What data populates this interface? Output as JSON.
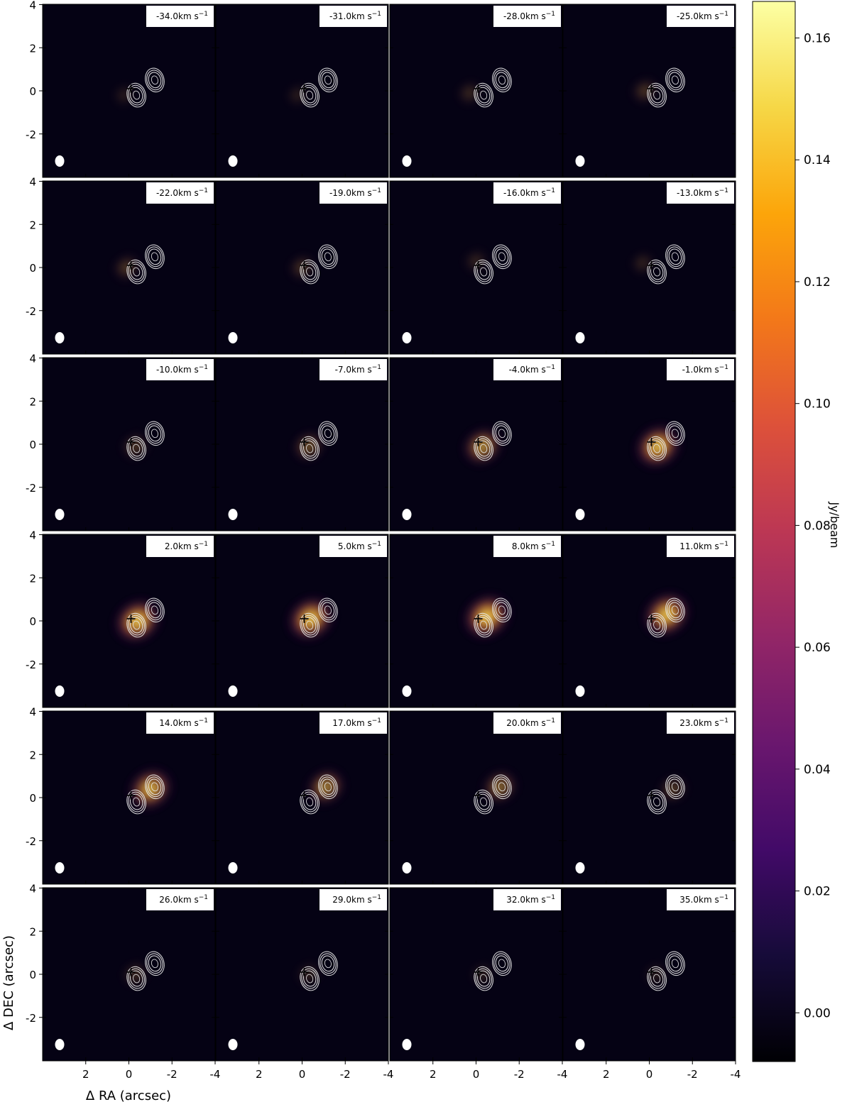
{
  "chart_data": {
    "type": "heatmap",
    "title": "",
    "xlabel": "Δ RA (arcsec)",
    "ylabel": "Δ DEC (arcsec)",
    "xlim": [
      4,
      -4
    ],
    "ylim": [
      -4,
      4
    ],
    "x_ticks": [
      "2",
      "0",
      "-2",
      "-4"
    ],
    "y_ticks": [
      "4",
      "2",
      "0",
      "-2"
    ],
    "velocity_unit": "km s",
    "velocity_unit_exp": "−1",
    "velocities": [
      -34.0,
      -31.0,
      -28.0,
      -25.0,
      -22.0,
      -19.0,
      -16.0,
      -13.0,
      -10.0,
      -7.0,
      -4.0,
      -1.0,
      2.0,
      5.0,
      8.0,
      11.0,
      14.0,
      17.0,
      20.0,
      23.0,
      26.0,
      29.0,
      32.0,
      35.0
    ],
    "channel_labels": [
      "-34.0km s",
      "-31.0km s",
      "-28.0km s",
      "-25.0km s",
      "-22.0km s",
      "-19.0km s",
      "-16.0km s",
      "-13.0km s",
      "-10.0km s",
      "-7.0km s",
      "-4.0km s",
      "-1.0km s",
      "2.0km s",
      "5.0km s",
      "8.0km s",
      "11.0km s",
      "14.0km s",
      "17.0km s",
      "20.0km s",
      "23.0km s",
      "26.0km s",
      "29.0km s",
      "32.0km s",
      "35.0km s"
    ],
    "peak_flux_jy_per_beam": [
      0.004,
      0.006,
      0.018,
      0.03,
      0.034,
      0.028,
      0.014,
      0.012,
      0.035,
      0.06,
      0.11,
      0.15,
      0.155,
      0.155,
      0.16,
      0.155,
      0.14,
      0.1,
      0.08,
      0.04,
      0.025,
      0.015,
      0.01,
      0.008
    ],
    "emission_peak_arcsec": [
      [
        0.2,
        -0.2
      ],
      [
        0.2,
        -0.2
      ],
      [
        0.3,
        -0.1
      ],
      [
        0.2,
        0.0
      ],
      [
        0.1,
        0.0
      ],
      [
        0.0,
        0.0
      ],
      [
        0.0,
        0.3
      ],
      [
        0.3,
        0.2
      ],
      [
        -0.3,
        -0.1
      ],
      [
        -0.3,
        -0.1
      ],
      [
        -0.3,
        -0.1
      ],
      [
        -0.4,
        -0.1
      ],
      [
        -0.4,
        0.0
      ],
      [
        -0.4,
        0.1
      ],
      [
        -0.5,
        0.2
      ],
      [
        -0.8,
        0.3
      ],
      [
        -1.0,
        0.4
      ],
      [
        -1.1,
        0.5
      ],
      [
        -1.1,
        0.5
      ],
      [
        -1.1,
        0.4
      ],
      [
        -0.3,
        0.0
      ],
      [
        -0.3,
        0.0
      ],
      [
        -0.3,
        0.0
      ],
      [
        -0.3,
        0.0
      ]
    ],
    "continuum_sources_arcsec": [
      [
        -0.35,
        -0.2
      ],
      [
        -1.2,
        0.5
      ]
    ],
    "cross_marker_arcsec": [
      -0.1,
      0.1
    ],
    "colorbar": {
      "label": "Jy/beam",
      "colormap": "inferno",
      "range": [
        -0.008,
        0.166
      ],
      "ticks": [
        "0.00",
        "0.02",
        "0.04",
        "0.06",
        "0.08",
        "0.10",
        "0.12",
        "0.14",
        "0.16"
      ]
    },
    "grid": false,
    "legend": "none"
  }
}
